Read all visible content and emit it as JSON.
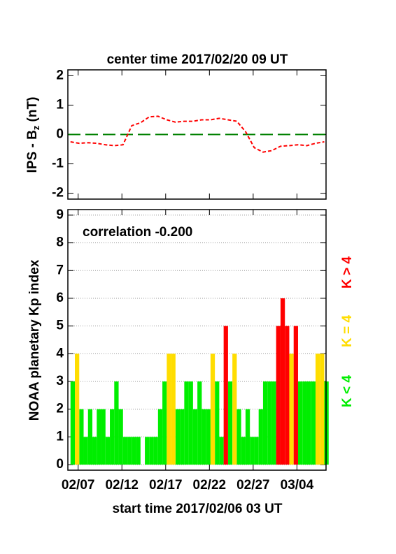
{
  "chart_data": [
    {
      "type": "line",
      "title": "center time 2017/02/20 09 UT",
      "y_label": {
        "prefix": "IPS - B",
        "sub": "z",
        "suffix": " (nT)"
      },
      "x": [
        0,
        1,
        2,
        3,
        4,
        5,
        6,
        7,
        8,
        9,
        10,
        11,
        12,
        13,
        14,
        15,
        16,
        17,
        18,
        19,
        20,
        21,
        22,
        23,
        24,
        25,
        26,
        27,
        28,
        29
      ],
      "series": [
        {
          "color": "#ff0000",
          "values": [
            -0.25,
            -0.3,
            -0.28,
            -0.3,
            -0.35,
            -0.38,
            -0.35,
            0.3,
            0.4,
            0.6,
            0.62,
            0.5,
            0.42,
            0.45,
            0.45,
            0.5,
            0.5,
            0.55,
            0.5,
            0.45,
            0.1,
            -0.45,
            -0.6,
            -0.55,
            -0.4,
            -0.38,
            -0.35,
            -0.38,
            -0.3,
            -0.25
          ]
        }
      ],
      "hline": {
        "value": 0,
        "color": "#008000"
      },
      "xlim": [
        -0.3,
        29.2
      ],
      "xticks": [
        0.875,
        5.875,
        10.875,
        15.875,
        20.875,
        25.875
      ],
      "ylim": [
        -2.2,
        2.2
      ],
      "yticks": [
        2,
        1,
        0,
        -1,
        -2
      ]
    },
    {
      "type": "bar",
      "annotation": "correlation -0.200",
      "y_label": "NOAA planetary Kp index",
      "x_label": "start time 2017/02/06 03 UT",
      "x": [
        0.25,
        0.75,
        1.25,
        1.75,
        2.25,
        2.75,
        3.25,
        3.75,
        4.25,
        4.75,
        5.25,
        5.75,
        6.25,
        6.75,
        7.25,
        7.75,
        8.25,
        8.75,
        9.25,
        9.75,
        10.25,
        10.75,
        11.25,
        11.75,
        12.25,
        12.75,
        13.25,
        13.75,
        14.25,
        14.75,
        15.25,
        15.75,
        16.25,
        16.75,
        17.25,
        17.75,
        18.25,
        18.75,
        19.25,
        19.75,
        20.25,
        20.75,
        21.25,
        21.75,
        22.25,
        22.75,
        23.25,
        23.75,
        24.25,
        24.75,
        25.25,
        25.75,
        26.25,
        26.75,
        27.25,
        27.75,
        28.25,
        28.75,
        29.25
      ],
      "series": [
        {
          "name": "K < 4",
          "color": "#00ee00",
          "values": [
            3,
            null,
            2,
            1,
            2,
            1,
            2,
            2,
            1,
            2,
            3,
            2,
            1,
            1,
            1,
            1,
            0,
            1,
            1,
            1,
            2,
            3,
            null,
            null,
            2,
            2,
            3,
            3,
            2,
            3,
            2,
            2,
            null,
            3,
            1,
            null,
            3,
            null,
            2,
            1,
            2,
            1,
            1,
            2,
            3,
            3,
            3,
            null,
            null,
            null,
            null,
            null,
            3,
            3,
            3,
            3,
            null,
            null,
            3
          ]
        },
        {
          "name": "K = 4",
          "color": "#ffdd00",
          "values": [
            null,
            4,
            null,
            null,
            null,
            null,
            null,
            null,
            null,
            null,
            null,
            null,
            null,
            null,
            null,
            null,
            null,
            null,
            null,
            null,
            null,
            null,
            4,
            4,
            null,
            null,
            null,
            null,
            null,
            null,
            null,
            null,
            4,
            null,
            null,
            null,
            null,
            4,
            null,
            null,
            null,
            null,
            null,
            null,
            null,
            null,
            null,
            null,
            null,
            null,
            4,
            null,
            null,
            null,
            null,
            null,
            4,
            4,
            null
          ]
        },
        {
          "name": "K > 4",
          "color": "#ff0000",
          "values": [
            null,
            null,
            null,
            null,
            null,
            null,
            null,
            null,
            null,
            null,
            null,
            null,
            null,
            null,
            null,
            null,
            null,
            null,
            null,
            null,
            null,
            null,
            null,
            null,
            null,
            null,
            null,
            null,
            null,
            null,
            null,
            null,
            null,
            null,
            null,
            5,
            null,
            null,
            null,
            null,
            null,
            null,
            null,
            null,
            null,
            null,
            null,
            5,
            6,
            5,
            null,
            5,
            null,
            null,
            null,
            null,
            null,
            null,
            null
          ]
        }
      ],
      "xlim": [
        -0.3,
        29.2
      ],
      "xticks": [
        {
          "value": 0.875,
          "label": "02/07"
        },
        {
          "value": 5.875,
          "label": "02/12"
        },
        {
          "value": 10.875,
          "label": "02/17"
        },
        {
          "value": 15.875,
          "label": "02/22"
        },
        {
          "value": 20.875,
          "label": "02/27"
        },
        {
          "value": 25.875,
          "label": "03/04"
        }
      ],
      "ylim": [
        -0.2,
        9.2
      ],
      "yticks": [
        0,
        1,
        2,
        3,
        4,
        5,
        6,
        7,
        8,
        9
      ],
      "grid": true
    }
  ]
}
